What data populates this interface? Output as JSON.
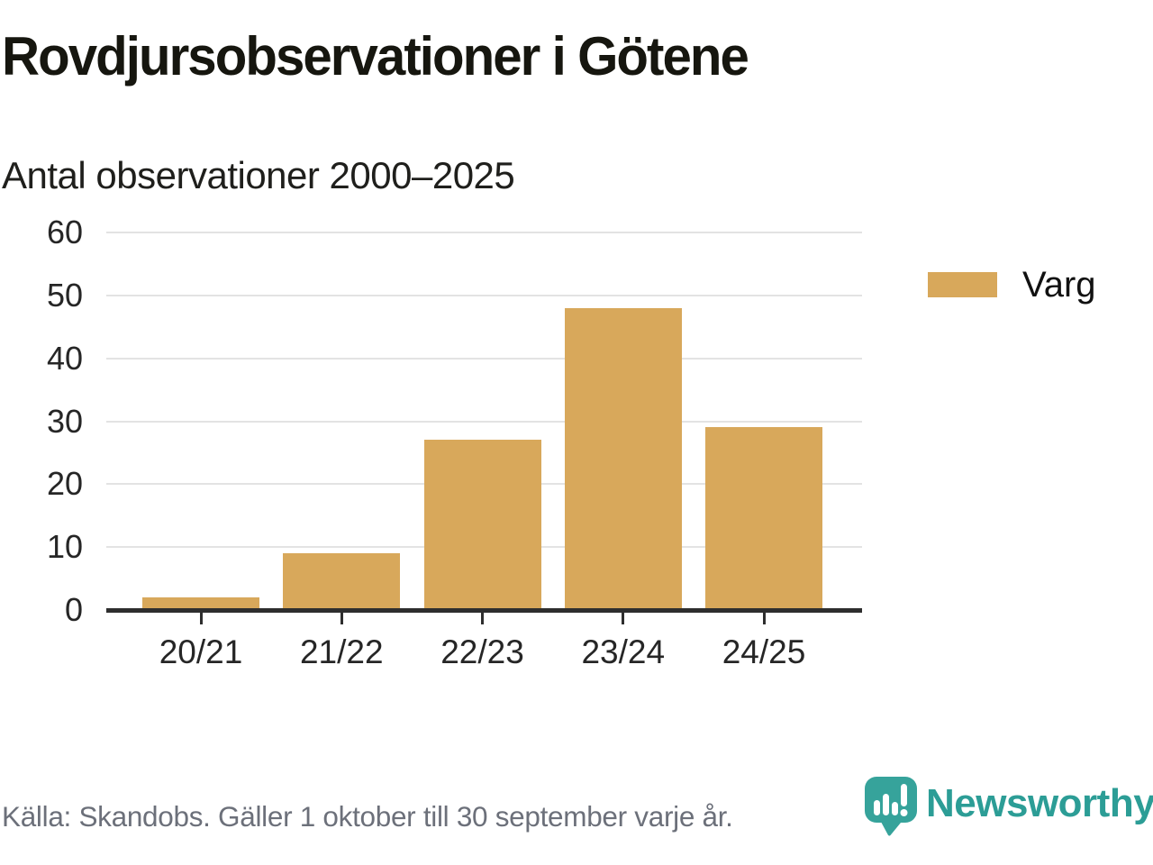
{
  "chart_data": {
    "type": "bar",
    "title": "Rovdjursobservationer i Götene",
    "subtitle": "Antal observationer 2000–2025",
    "categories": [
      "20/21",
      "21/22",
      "22/23",
      "23/24",
      "24/25"
    ],
    "series": [
      {
        "name": "Varg",
        "values": [
          2,
          9,
          27,
          48,
          29
        ]
      }
    ],
    "ylim": [
      0,
      60
    ],
    "ytick_step": 10,
    "yticks": [
      0,
      10,
      20,
      30,
      40,
      50,
      60
    ],
    "grid": true,
    "legend_position": "right",
    "bar_color": "#d8a85b",
    "axis_color": "#2e2e2e",
    "gridline_color": "#e3e3e3"
  },
  "legend": {
    "items": [
      {
        "label": "Varg",
        "color": "#d8a85b"
      }
    ]
  },
  "footer": {
    "source": "Källa: Skandobs. Gäller 1 oktober till 30 september varje år.",
    "brand": "Newsworthy",
    "brand_color": "#2c9d96",
    "logo_icon": "speech-bubble-bar-chart-icon"
  }
}
